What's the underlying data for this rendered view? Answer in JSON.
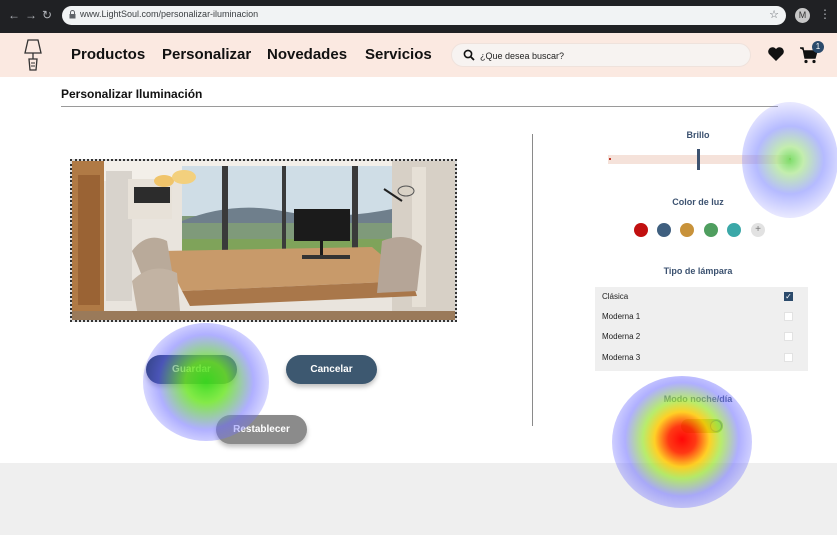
{
  "browser": {
    "url": "www.LightSoul.com/personalizar-iluminacion",
    "profile_initial": "M"
  },
  "header": {
    "menu": [
      "Productos",
      "Personalizar",
      "Novedades",
      "Servicios"
    ],
    "search_placeholder": "¿Que desea buscar?",
    "cart_count": "1"
  },
  "page": {
    "title": "Personalizar Iluminación"
  },
  "actions": {
    "save": "Guardar",
    "cancel": "Cancelar",
    "reset": "Restablecer"
  },
  "panel": {
    "brightness_label": "Brillo",
    "brightness_value": 0.49,
    "color_label": "Color de luz",
    "colors": [
      "#c11010",
      "#3f5f7f",
      "#c8923a",
      "#4f9e5f",
      "#3ba8a8"
    ],
    "add_color": "+",
    "lamp_label": "Tipo de lámpara",
    "lamps": [
      {
        "label": "Clásica",
        "checked": true
      },
      {
        "label": "Moderna 1",
        "checked": false
      },
      {
        "label": "Moderna 2",
        "checked": false
      },
      {
        "label": "Moderna 3",
        "checked": false
      }
    ],
    "mode_label": "Modo noche/día",
    "mode_on": true
  }
}
